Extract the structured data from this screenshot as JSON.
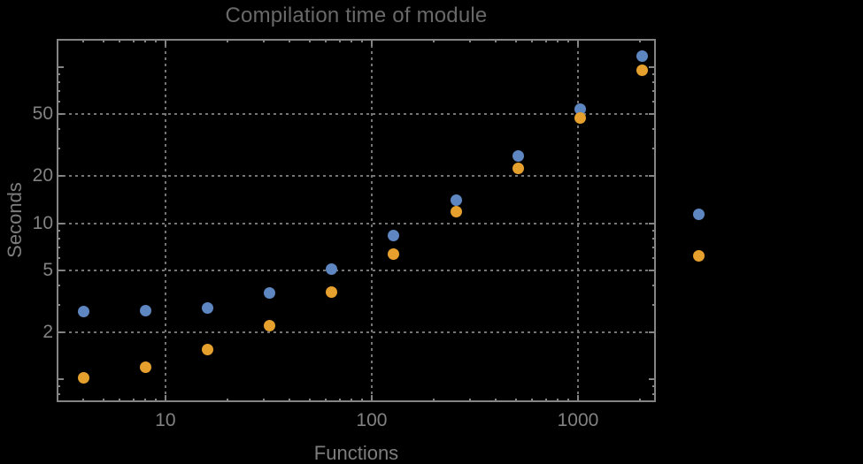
{
  "title": "Compilation time of module",
  "colors": {
    "background": "#000000",
    "frame": "#848484",
    "grid": "#757575",
    "title_text": "#696969",
    "axis_label_text": "#7d7d7d",
    "tick_label_text": "#828282",
    "series_blue": "#5e86c1",
    "series_orange": "#e6a02d"
  },
  "chart_data": {
    "type": "scatter",
    "title": "Compilation time of module",
    "xlabel": "Functions",
    "ylabel": "Seconds",
    "xscale": "log",
    "yscale": "log",
    "xlim": [
      2.97,
      2386
    ],
    "ylim": [
      0.712,
      152
    ],
    "grid": "dotted",
    "x": [
      4,
      8,
      16,
      32,
      64,
      128,
      256,
      512,
      1024,
      2048
    ],
    "series": [
      {
        "name": "series-1-blue",
        "color": "#5e86c1",
        "values": [
          2.7,
          2.75,
          2.85,
          3.55,
          5.05,
          8.3,
          14,
          27,
          54,
          118
        ]
      },
      {
        "name": "series-2-orange",
        "color": "#e6a02d",
        "values": [
          1.02,
          1.2,
          1.55,
          2.2,
          3.6,
          6.3,
          11.9,
          22.5,
          47,
          96
        ]
      }
    ],
    "x_gridlines": [
      10,
      100,
      1000
    ],
    "y_gridlines": [
      2,
      5,
      10,
      20,
      50
    ],
    "x_ticks_major": [
      {
        "value": 10,
        "label": "10"
      },
      {
        "value": 100,
        "label": "100"
      },
      {
        "value": 1000,
        "label": "1000"
      }
    ],
    "x_ticks_minor": [
      4,
      5,
      6,
      7,
      8,
      9,
      20,
      30,
      40,
      50,
      60,
      70,
      80,
      90,
      200,
      300,
      400,
      500,
      600,
      700,
      800,
      900,
      2000
    ],
    "y_ticks_major": [
      {
        "value": 50,
        "label": "50"
      },
      {
        "value": 20,
        "label": "20"
      },
      {
        "value": 10,
        "label": "10"
      },
      {
        "value": 5,
        "label": "5"
      },
      {
        "value": 2,
        "label": "2"
      }
    ],
    "y_ticks_unlabeled_major": [
      1,
      100
    ],
    "y_ticks_minor": [
      0.8,
      0.9,
      3,
      4,
      6,
      7,
      8,
      9,
      30,
      40,
      60,
      70,
      80,
      90
    ],
    "legend_markers": [
      {
        "name": "legend-marker-blue",
        "color": "#5e86c1"
      },
      {
        "name": "legend-marker-orange",
        "color": "#e6a02d"
      }
    ]
  }
}
